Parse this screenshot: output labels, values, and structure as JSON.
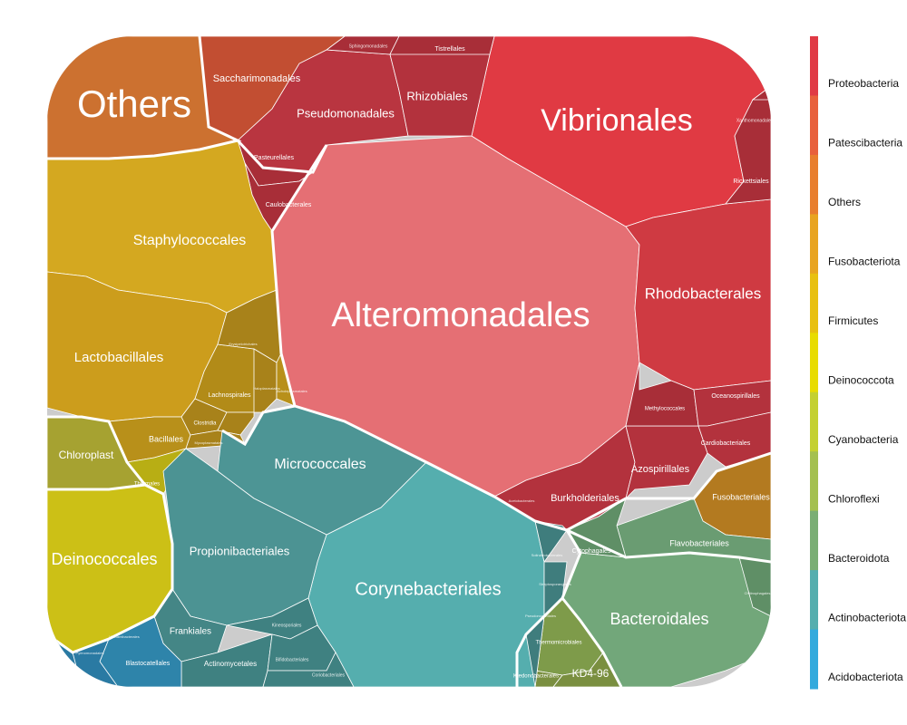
{
  "chart_data": {
    "type": "voronoi-treemap",
    "title": "",
    "phyla": [
      {
        "name": "Proteobacteria",
        "color": "#e03a45"
      },
      {
        "name": "Patescibacteria",
        "color": "#e8603c"
      },
      {
        "name": "Others",
        "color": "#e87e2e"
      },
      {
        "name": "Fusobacteriota",
        "color": "#e8a420"
      },
      {
        "name": "Firmicutes",
        "color": "#e8c010"
      },
      {
        "name": "Deinococcota",
        "color": "#e8dc00"
      },
      {
        "name": "Cyanobacteria",
        "color": "#c4d030"
      },
      {
        "name": "Chloroflexi",
        "color": "#a4c050"
      },
      {
        "name": "Bacteroidota",
        "color": "#7aae74"
      },
      {
        "name": "Actinobacteriota",
        "color": "#55aeae"
      },
      {
        "name": "Acidobacteriota",
        "color": "#33aadd"
      }
    ],
    "orders": [
      {
        "name": "Alteromonadales",
        "phylum": "Proteobacteria"
      },
      {
        "name": "Vibrionales",
        "phylum": "Proteobacteria"
      },
      {
        "name": "Rhodobacterales",
        "phylum": "Proteobacteria"
      },
      {
        "name": "Pseudomonadales",
        "phylum": "Proteobacteria"
      },
      {
        "name": "Rhizobiales",
        "phylum": "Proteobacteria"
      },
      {
        "name": "Burkholderiales",
        "phylum": "Proteobacteria"
      },
      {
        "name": "Azospirillales",
        "phylum": "Proteobacteria"
      },
      {
        "name": "Methylococcales",
        "phylum": "Proteobacteria"
      },
      {
        "name": "Oceanospirillales",
        "phylum": "Proteobacteria"
      },
      {
        "name": "Cardiobacteriales",
        "phylum": "Proteobacteria"
      },
      {
        "name": "Pasteurellales",
        "phylum": "Proteobacteria"
      },
      {
        "name": "Caulobacterales",
        "phylum": "Proteobacteria"
      },
      {
        "name": "Rickettsiales",
        "phylum": "Proteobacteria"
      },
      {
        "name": "Xanthomonadales",
        "phylum": "Proteobacteria"
      },
      {
        "name": "Sphingomonadales",
        "phylum": "Proteobacteria"
      },
      {
        "name": "Tistrellales",
        "phylum": "Proteobacteria"
      },
      {
        "name": "Acetobacterales",
        "phylum": "Proteobacteria"
      },
      {
        "name": "Saccharimonadales",
        "phylum": "Patescibacteria"
      },
      {
        "name": "Others",
        "phylum": "Others"
      },
      {
        "name": "Fusobacteriales",
        "phylum": "Fusobacteriota"
      },
      {
        "name": "Staphylococcales",
        "phylum": "Firmicutes"
      },
      {
        "name": "Lactobacillales",
        "phylum": "Firmicutes"
      },
      {
        "name": "Bacillales",
        "phylum": "Firmicutes"
      },
      {
        "name": "Lachnospirales",
        "phylum": "Firmicutes"
      },
      {
        "name": "Clostridia",
        "phylum": "Firmicutes"
      },
      {
        "name": "Erysipelotrichales",
        "phylum": "Firmicutes"
      },
      {
        "name": "Haloplasmatales",
        "phylum": "Firmicutes"
      },
      {
        "name": "Acholeplasmatales",
        "phylum": "Firmicutes"
      },
      {
        "name": "Mycoplasmatales",
        "phylum": "Firmicutes"
      },
      {
        "name": "Deinococcales",
        "phylum": "Deinococcota"
      },
      {
        "name": "Thermales",
        "phylum": "Deinococcota"
      },
      {
        "name": "Chloroplast",
        "phylum": "Cyanobacteria"
      },
      {
        "name": "Thermomicrobiales",
        "phylum": "Chloroflexi"
      },
      {
        "name": "Ktedonobacterales",
        "phylum": "Chloroflexi"
      },
      {
        "name": "KD4-96",
        "phylum": "Chloroflexi"
      },
      {
        "name": "Bacteroidales",
        "phylum": "Bacteroidota"
      },
      {
        "name": "Flavobacteriales",
        "phylum": "Bacteroidota"
      },
      {
        "name": "Cytophagales",
        "phylum": "Bacteroidota"
      },
      {
        "name": "Chitinophagales",
        "phylum": "Bacteroidota"
      },
      {
        "name": "Corynebacteriales",
        "phylum": "Actinobacteriota"
      },
      {
        "name": "Micrococcales",
        "phylum": "Actinobacteriota"
      },
      {
        "name": "Propionibacteriales",
        "phylum": "Actinobacteriota"
      },
      {
        "name": "Frankiales",
        "phylum": "Actinobacteriota"
      },
      {
        "name": "Actinomycetales",
        "phylum": "Actinobacteriota"
      },
      {
        "name": "Kineosporiales",
        "phylum": "Actinobacteriota"
      },
      {
        "name": "Bifidobacteriales",
        "phylum": "Actinobacteriota"
      },
      {
        "name": "Coriobacteriales",
        "phylum": "Actinobacteriota"
      },
      {
        "name": "Solirubrobacterales",
        "phylum": "Actinobacteriota"
      },
      {
        "name": "Streptosporangiales",
        "phylum": "Actinobacteriota"
      },
      {
        "name": "Pseudonocardiales",
        "phylum": "Actinobacteriota"
      },
      {
        "name": "Blastocatellales",
        "phylum": "Acidobacteriota"
      },
      {
        "name": "Vicinamibacterales",
        "phylum": "Acidobacteriota"
      },
      {
        "name": "Pyrinomonadales",
        "phylum": "Acidobacteriota"
      }
    ]
  }
}
